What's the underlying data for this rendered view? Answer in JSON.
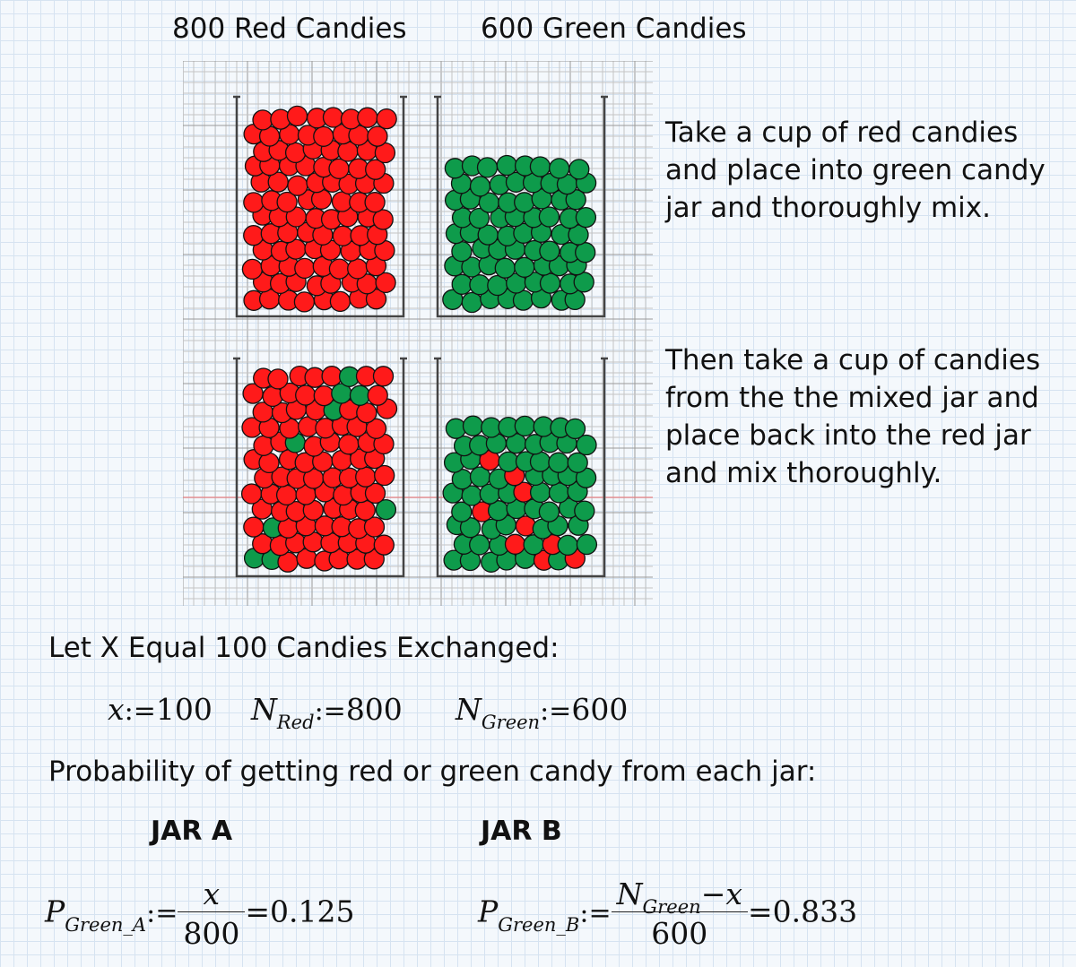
{
  "headers": {
    "red": "800 Red Candies",
    "green": "600 Green Candies"
  },
  "instructions": {
    "step1": [
      "Take a cup of red candies",
      "and place into green candy",
      "jar and thoroughly mix."
    ],
    "step2": [
      "Then take a cup of candies",
      "from the the mixed jar and",
      "place back into the red jar",
      "and mix thoroughly."
    ]
  },
  "exchange_heading": "Let X Equal 100 Candies Exchanged:",
  "definitions": {
    "x": {
      "var": "x",
      "op": ":=",
      "value": "100"
    },
    "n_red": {
      "var": "N",
      "sub": "Red",
      "op": ":=",
      "value": "800"
    },
    "n_green": {
      "var": "N",
      "sub": "Green",
      "op": ":=",
      "value": "600"
    }
  },
  "probability_heading": "Probability of getting red or green candy from each jar:",
  "jar_a": {
    "label": "JAR A",
    "var": "P",
    "sub": "Green_A",
    "op": ":=",
    "numerator": "x",
    "denominator": "800",
    "result": "=0.125"
  },
  "jar_b": {
    "label": "JAR B",
    "var": "P",
    "sub": "Green_B",
    "op": ":=",
    "numerator_var": "N",
    "numerator_sub": "Green",
    "numerator_rest": "−x",
    "denominator": "600",
    "result": "=0.833"
  },
  "colors": {
    "red_candy": "#ff1a1a",
    "green_candy": "#0e9b4b",
    "candy_outline": "#111111",
    "jar_wall": "#444444",
    "grid_minor": "#c4c4c4",
    "grid_major": "#9a9a9a",
    "red_guideline": "#e88080"
  },
  "jars": {
    "before_red": {
      "fill": "red",
      "mixed_in": 0
    },
    "before_green": {
      "fill": "green",
      "mixed_in": 0
    },
    "after_red": {
      "fill": "red",
      "mixed_in": 10
    },
    "after_green": {
      "fill": "green",
      "mixed_in": 9
    }
  }
}
